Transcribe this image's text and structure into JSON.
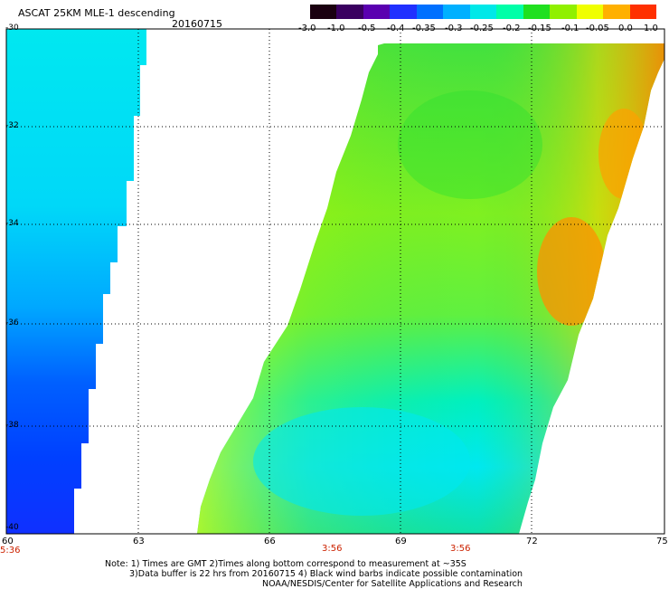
{
  "title": {
    "product": "ASCAT 25KM MLE-1 descending",
    "date": "20160715"
  },
  "colorbar": {
    "tick_labels": [
      "-3.0",
      "-1.0",
      "-0.5",
      "-0.4",
      "-0.35",
      "-0.3",
      "-0.25",
      "-0.2",
      "-0.15",
      "-0.1",
      "-0.05",
      "0.0",
      "1.0"
    ],
    "colors": [
      "#1a0010",
      "#400060",
      "#6000c0",
      "#2030ff",
      "#0070ff",
      "#00b0ff",
      "#00e0e8",
      "#00ffb0",
      "#20e020",
      "#90f000",
      "#f0ff00",
      "#ffb000",
      "#ff4000"
    ]
  },
  "axes": {
    "lat_labels": [
      "-30",
      "-32",
      "-34",
      "-36",
      "-38",
      "-40"
    ],
    "lon_labels": [
      "60",
      "63",
      "66",
      "69",
      "72",
      "75"
    ]
  },
  "pass_times": [
    "5:36",
    "3:56",
    "3:56"
  ],
  "notes": {
    "line1": "Note: 1) Times are GMT 2)Times along bottom correspond to measurement at ~35S",
    "line2": "3)Data buffer is 22 hrs from 20160715 4) Black wind barbs indicate possible contamination",
    "line3": "NOAA/NESDIS/Center for Satellite Applications and Research"
  }
}
